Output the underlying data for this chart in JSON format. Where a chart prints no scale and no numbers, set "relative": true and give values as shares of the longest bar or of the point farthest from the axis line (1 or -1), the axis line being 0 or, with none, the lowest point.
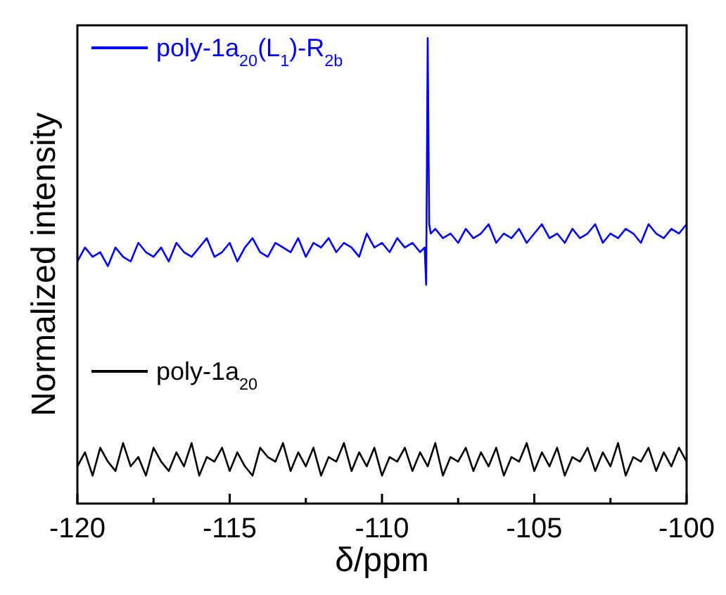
{
  "chart_data": {
    "type": "line",
    "xlabel": "δ/ppm",
    "ylabel": "Normalized intensity",
    "relative": true,
    "tick_labels": "x",
    "legend": "top left",
    "grid": false,
    "line_style": "solid",
    "xlim": [
      -120,
      -100
    ],
    "xticks": [
      -120,
      {
        "value": -117.5,
        "label": null
      },
      -115,
      {
        "value": -112.5,
        "label": null
      },
      -110,
      {
        "value": -107.5,
        "label": null
      },
      -105,
      {
        "value": -102.5,
        "label": null
      },
      -100
    ],
    "series": [
      {
        "name": "poly-1a$_{20}$(L$_{1}$)-R$_{2b}$",
        "color": "#0000ff",
        "x": [
          -120,
          -119.75,
          -119.5,
          -119.25,
          -119,
          -118.75,
          -118.5,
          -118.25,
          -118,
          -117.75,
          -117.5,
          -117.25,
          -117,
          -116.75,
          -116.5,
          -116.25,
          -116,
          -115.75,
          -115.5,
          -115.25,
          -115,
          -114.75,
          -114.5,
          -114.25,
          -114,
          -113.75,
          -113.5,
          -113.25,
          -113,
          -112.75,
          -112.5,
          -112.25,
          -112,
          -111.75,
          -111.5,
          -111.25,
          -111,
          -110.75,
          -110.5,
          -110.25,
          -110,
          -109.75,
          -109.5,
          -109.25,
          -109,
          -108.75,
          -108.6,
          -108.55,
          -108.5,
          -108.45,
          -108.4,
          -108.25,
          -108,
          -107.75,
          -107.5,
          -107.25,
          -107,
          -106.75,
          -106.5,
          -106.25,
          -106,
          -105.75,
          -105.5,
          -105.25,
          -105,
          -104.75,
          -104.5,
          -104.25,
          -104,
          -103.75,
          -103.5,
          -103.25,
          -103,
          -102.75,
          -102.5,
          -102.25,
          -102,
          -101.75,
          -101.5,
          -101.25,
          -101,
          -100.75,
          -100.5,
          -100.25,
          -100
        ],
        "values": [
          0.52,
          0.55,
          0.53,
          0.54,
          0.51,
          0.55,
          0.53,
          0.52,
          0.56,
          0.54,
          0.53,
          0.55,
          0.52,
          0.56,
          0.54,
          0.53,
          0.55,
          0.57,
          0.53,
          0.54,
          0.56,
          0.52,
          0.55,
          0.57,
          0.54,
          0.53,
          0.56,
          0.55,
          0.54,
          0.57,
          0.53,
          0.56,
          0.55,
          0.57,
          0.54,
          0.56,
          0.55,
          0.53,
          0.58,
          0.55,
          0.56,
          0.54,
          0.57,
          0.55,
          0.56,
          0.54,
          0.55,
          0.47,
          1.0,
          0.6,
          0.58,
          0.59,
          0.57,
          0.58,
          0.56,
          0.59,
          0.57,
          0.58,
          0.6,
          0.56,
          0.58,
          0.57,
          0.59,
          0.56,
          0.58,
          0.6,
          0.57,
          0.58,
          0.56,
          0.59,
          0.57,
          0.58,
          0.6,
          0.56,
          0.58,
          0.57,
          0.59,
          0.58,
          0.56,
          0.6,
          0.58,
          0.57,
          0.59,
          0.58,
          0.6
        ]
      },
      {
        "name": "poly-1a$_{20}$",
        "color": "#000000",
        "x": [
          -120,
          -119.75,
          -119.5,
          -119.25,
          -119,
          -118.75,
          -118.5,
          -118.25,
          -118,
          -117.75,
          -117.5,
          -117.25,
          -117,
          -116.75,
          -116.5,
          -116.25,
          -116,
          -115.75,
          -115.5,
          -115.25,
          -115,
          -114.75,
          -114.5,
          -114.25,
          -114,
          -113.75,
          -113.5,
          -113.25,
          -113,
          -112.75,
          -112.5,
          -112.25,
          -112,
          -111.75,
          -111.5,
          -111.25,
          -111,
          -110.75,
          -110.5,
          -110.25,
          -110,
          -109.75,
          -109.5,
          -109.25,
          -109,
          -108.75,
          -108.5,
          -108.25,
          -108,
          -107.75,
          -107.5,
          -107.25,
          -107,
          -106.75,
          -106.5,
          -106.25,
          -106,
          -105.75,
          -105.5,
          -105.25,
          -105,
          -104.75,
          -104.5,
          -104.25,
          -104,
          -103.75,
          -103.5,
          -103.25,
          -103,
          -102.75,
          -102.5,
          -102.25,
          -102,
          -101.75,
          -101.5,
          -101.25,
          -101,
          -100.75,
          -100.5,
          -100.25,
          -100
        ],
        "values": [
          0.08,
          0.11,
          0.06,
          0.12,
          0.09,
          0.07,
          0.13,
          0.08,
          0.1,
          0.06,
          0.12,
          0.09,
          0.07,
          0.11,
          0.08,
          0.13,
          0.06,
          0.1,
          0.09,
          0.12,
          0.07,
          0.11,
          0.08,
          0.06,
          0.12,
          0.1,
          0.09,
          0.13,
          0.07,
          0.11,
          0.08,
          0.12,
          0.06,
          0.1,
          0.09,
          0.13,
          0.07,
          0.11,
          0.08,
          0.12,
          0.06,
          0.1,
          0.09,
          0.12,
          0.07,
          0.11,
          0.08,
          0.13,
          0.06,
          0.1,
          0.09,
          0.12,
          0.07,
          0.11,
          0.08,
          0.12,
          0.06,
          0.1,
          0.09,
          0.13,
          0.07,
          0.11,
          0.08,
          0.12,
          0.06,
          0.1,
          0.09,
          0.12,
          0.07,
          0.11,
          0.08,
          0.13,
          0.06,
          0.1,
          0.09,
          0.12,
          0.07,
          0.11,
          0.08,
          0.12,
          0.09
        ]
      }
    ]
  }
}
